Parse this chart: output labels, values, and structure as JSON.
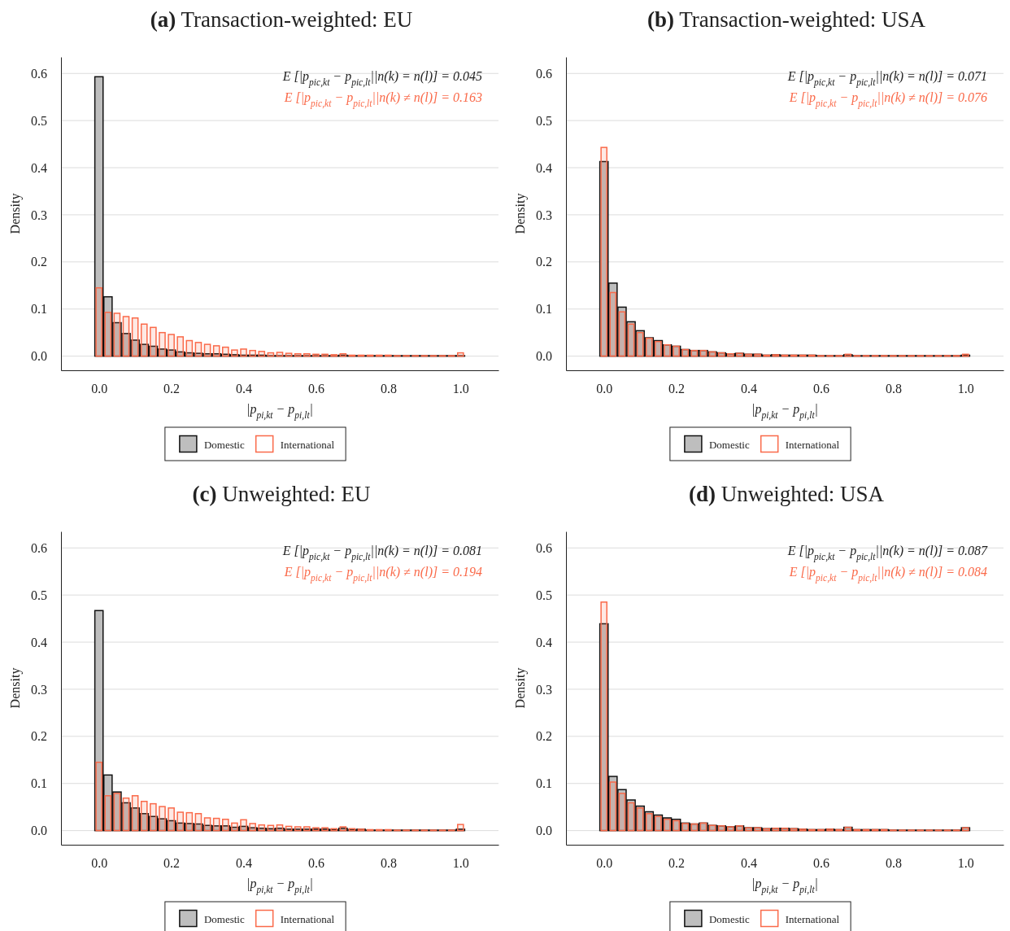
{
  "chart_data": [
    {
      "type": "histogram",
      "title": "(a) Transaction-weighted: EU",
      "xlabel": "|p$_{pi,kt}$ − p$_{pi,lt}$|",
      "ylabel": "Density",
      "annotations": [
        "E [|p$_{pic,kt}$ − p$_{pic,lt}$||n(k) = n(l)] = 0.045",
        "E [|p$_{pic,kt}$ − p$_{pic,lt}$||n(k) ≠ n(l)] = 0.163"
      ],
      "bins": [
        -0.0125,
        0.0125,
        0.0375,
        0.0625,
        0.0875,
        0.1125,
        0.1375,
        0.1625,
        0.1875,
        0.2125,
        0.2375,
        0.2625,
        0.2875,
        0.3125,
        0.3375,
        0.3625,
        0.3875,
        0.4125,
        0.4375,
        0.4625,
        0.4875,
        0.5125,
        0.5375,
        0.5625,
        0.5875,
        0.6125,
        0.6375,
        0.6625,
        0.6875,
        0.7125,
        0.7375,
        0.7625,
        0.7875,
        0.8125,
        0.8375,
        0.8625,
        0.8875,
        0.9125,
        0.9375,
        0.9625,
        0.9875,
        1.0125
      ],
      "series": [
        {
          "name": "Domestic",
          "color": "#bebebe",
          "values": [
            0.593,
            0.126,
            0.071,
            0.048,
            0.034,
            0.025,
            0.021,
            0.015,
            0.013,
            0.009,
            0.007,
            0.006,
            0.005,
            0.005,
            0.004,
            0.003,
            0.002,
            0.002,
            0.002,
            0.001,
            0.001,
            0.001,
            0.001,
            0.001,
            0.001,
            0.001,
            0.001,
            0.002,
            0.001,
            0.001,
            0.001,
            0.001,
            0.001,
            0.001,
            0.001,
            0.001,
            0.001,
            0.001,
            0.001,
            0.001,
            0.001
          ]
        },
        {
          "name": "International",
          "color": "#fa6a4a",
          "values": [
            0.145,
            0.093,
            0.091,
            0.084,
            0.081,
            0.068,
            0.061,
            0.05,
            0.046,
            0.041,
            0.033,
            0.029,
            0.025,
            0.022,
            0.019,
            0.013,
            0.015,
            0.012,
            0.01,
            0.007,
            0.008,
            0.006,
            0.005,
            0.005,
            0.004,
            0.004,
            0.003,
            0.005,
            0.002,
            0.002,
            0.002,
            0.002,
            0.002,
            0.001,
            0.001,
            0.001,
            0.001,
            0.001,
            0.001,
            0.001,
            0.007
          ]
        }
      ],
      "xlim": [
        -0.105,
        1.105
      ],
      "ylim": [
        -0.03,
        0.635
      ],
      "xticks": [
        {
          "value": 0,
          "label": "0.0"
        },
        {
          "value": 0.2,
          "label": "0.2"
        },
        {
          "value": 0.4,
          "label": "0.4"
        },
        {
          "value": 0.6,
          "label": "0.6"
        },
        {
          "value": 0.8,
          "label": "0.8"
        },
        {
          "value": 1,
          "label": "1.0"
        }
      ],
      "yticks": [
        {
          "value": 0,
          "label": "0.0"
        },
        {
          "value": 0.1,
          "label": "0.1"
        },
        {
          "value": 0.2,
          "label": "0.2"
        },
        {
          "value": 0.3,
          "label": "0.3"
        },
        {
          "value": 0.4,
          "label": "0.4"
        },
        {
          "value": 0.5,
          "label": "0.5"
        },
        {
          "value": 0.6,
          "label": "0.6"
        }
      ],
      "grid": "y",
      "legend": "bottom"
    },
    {
      "type": "histogram",
      "title": "(b) Transaction-weighted: USA",
      "xlabel": "|p$_{pi,kt}$ − p$_{pi,lt}$|",
      "ylabel": "Density",
      "annotations": [
        "E [|p$_{pic,kt}$ − p$_{pic,lt}$||n(k) = n(l)] = 0.071",
        "E [|p$_{pic,kt}$ − p$_{pic,lt}$||n(k) ≠ n(l)] = 0.076"
      ],
      "bins": [
        -0.0125,
        0.0125,
        0.0375,
        0.0625,
        0.0875,
        0.1125,
        0.1375,
        0.1625,
        0.1875,
        0.2125,
        0.2375,
        0.2625,
        0.2875,
        0.3125,
        0.3375,
        0.3625,
        0.3875,
        0.4125,
        0.4375,
        0.4625,
        0.4875,
        0.5125,
        0.5375,
        0.5625,
        0.5875,
        0.6125,
        0.6375,
        0.6625,
        0.6875,
        0.7125,
        0.7375,
        0.7625,
        0.7875,
        0.8125,
        0.8375,
        0.8625,
        0.8875,
        0.9125,
        0.9375,
        0.9625,
        0.9875,
        1.0125
      ],
      "series": [
        {
          "name": "Domestic",
          "color": "#bebebe",
          "values": [
            0.413,
            0.155,
            0.104,
            0.073,
            0.054,
            0.039,
            0.033,
            0.024,
            0.021,
            0.014,
            0.012,
            0.012,
            0.009,
            0.007,
            0.005,
            0.006,
            0.004,
            0.004,
            0.002,
            0.003,
            0.002,
            0.002,
            0.002,
            0.002,
            0.001,
            0.001,
            0.001,
            0.003,
            0.001,
            0.001,
            0.001,
            0.001,
            0.001,
            0.001,
            0.001,
            0.001,
            0.001,
            0.001,
            0.001,
            0.001,
            0.002
          ]
        },
        {
          "name": "International",
          "color": "#fa6a4a",
          "values": [
            0.443,
            0.135,
            0.094,
            0.068,
            0.05,
            0.038,
            0.031,
            0.024,
            0.021,
            0.014,
            0.012,
            0.012,
            0.009,
            0.007,
            0.005,
            0.006,
            0.004,
            0.004,
            0.002,
            0.003,
            0.002,
            0.002,
            0.002,
            0.002,
            0.001,
            0.001,
            0.001,
            0.004,
            0.001,
            0.001,
            0.001,
            0.001,
            0.001,
            0.001,
            0.001,
            0.001,
            0.001,
            0.001,
            0.001,
            0.001,
            0.004
          ]
        }
      ],
      "xlim": [
        -0.105,
        1.105
      ],
      "ylim": [
        -0.03,
        0.635
      ],
      "xticks": [
        {
          "value": 0,
          "label": "0.0"
        },
        {
          "value": 0.2,
          "label": "0.2"
        },
        {
          "value": 0.4,
          "label": "0.4"
        },
        {
          "value": 0.6,
          "label": "0.6"
        },
        {
          "value": 0.8,
          "label": "0.8"
        },
        {
          "value": 1,
          "label": "1.0"
        }
      ],
      "yticks": [
        {
          "value": 0,
          "label": "0.0"
        },
        {
          "value": 0.1,
          "label": "0.1"
        },
        {
          "value": 0.2,
          "label": "0.2"
        },
        {
          "value": 0.3,
          "label": "0.3"
        },
        {
          "value": 0.4,
          "label": "0.4"
        },
        {
          "value": 0.5,
          "label": "0.5"
        },
        {
          "value": 0.6,
          "label": "0.6"
        }
      ],
      "grid": "y",
      "legend": "bottom"
    },
    {
      "type": "histogram",
      "title": "(c) Unweighted: EU",
      "xlabel": "|p$_{pi,kt}$ − p$_{pi,lt}$|",
      "ylabel": "Density",
      "annotations": [
        "E [|p$_{pic,kt}$ − p$_{pic,lt}$||n(k) = n(l)] = 0.081",
        "E [|p$_{pic,kt}$ − p$_{pic,lt}$||n(k) ≠ n(l)] = 0.194"
      ],
      "bins": [
        -0.0125,
        0.0125,
        0.0375,
        0.0625,
        0.0875,
        0.1125,
        0.1375,
        0.1625,
        0.1875,
        0.2125,
        0.2375,
        0.2625,
        0.2875,
        0.3125,
        0.3375,
        0.3625,
        0.3875,
        0.4125,
        0.4375,
        0.4625,
        0.4875,
        0.5125,
        0.5375,
        0.5625,
        0.5875,
        0.6125,
        0.6375,
        0.6625,
        0.6875,
        0.7125,
        0.7375,
        0.7625,
        0.7875,
        0.8125,
        0.8375,
        0.8625,
        0.8875,
        0.9125,
        0.9375,
        0.9625,
        0.9875,
        1.0125
      ],
      "series": [
        {
          "name": "Domestic",
          "color": "#bebebe",
          "values": [
            0.467,
            0.118,
            0.082,
            0.059,
            0.048,
            0.036,
            0.03,
            0.025,
            0.021,
            0.016,
            0.015,
            0.014,
            0.011,
            0.01,
            0.01,
            0.007,
            0.009,
            0.006,
            0.005,
            0.004,
            0.005,
            0.003,
            0.003,
            0.003,
            0.003,
            0.003,
            0.002,
            0.005,
            0.002,
            0.003,
            0.001,
            0.001,
            0.001,
            0.001,
            0.001,
            0.001,
            0.001,
            0.001,
            0.001,
            0.001,
            0.003
          ]
        },
        {
          "name": "International",
          "color": "#fa6a4a",
          "values": [
            0.145,
            0.074,
            0.079,
            0.069,
            0.074,
            0.062,
            0.057,
            0.051,
            0.048,
            0.039,
            0.038,
            0.036,
            0.027,
            0.026,
            0.024,
            0.016,
            0.023,
            0.015,
            0.012,
            0.011,
            0.012,
            0.009,
            0.008,
            0.008,
            0.006,
            0.006,
            0.004,
            0.008,
            0.004,
            0.003,
            0.002,
            0.002,
            0.002,
            0.001,
            0.001,
            0.001,
            0.001,
            0.001,
            0.001,
            0.001,
            0.013
          ]
        }
      ],
      "xlim": [
        -0.105,
        1.105
      ],
      "ylim": [
        -0.03,
        0.635
      ],
      "xticks": [
        {
          "value": 0,
          "label": "0.0"
        },
        {
          "value": 0.2,
          "label": "0.2"
        },
        {
          "value": 0.4,
          "label": "0.4"
        },
        {
          "value": 0.6,
          "label": "0.6"
        },
        {
          "value": 0.8,
          "label": "0.8"
        },
        {
          "value": 1,
          "label": "1.0"
        }
      ],
      "yticks": [
        {
          "value": 0,
          "label": "0.0"
        },
        {
          "value": 0.1,
          "label": "0.1"
        },
        {
          "value": 0.2,
          "label": "0.2"
        },
        {
          "value": 0.3,
          "label": "0.3"
        },
        {
          "value": 0.4,
          "label": "0.4"
        },
        {
          "value": 0.5,
          "label": "0.5"
        },
        {
          "value": 0.6,
          "label": "0.6"
        }
      ],
      "grid": "y",
      "legend": "bottom"
    },
    {
      "type": "histogram",
      "title": "(d) Unweighted: USA",
      "xlabel": "|p$_{pi,kt}$ − p$_{pi,lt}$|",
      "ylabel": "Density",
      "annotations": [
        "E [|p$_{pic,kt}$ − p$_{pic,lt}$||n(k) = n(l)] = 0.087",
        "E [|p$_{pic,kt}$ − p$_{pic,lt}$||n(k) ≠ n(l)] = 0.084"
      ],
      "bins": [
        -0.0125,
        0.0125,
        0.0375,
        0.0625,
        0.0875,
        0.1125,
        0.1375,
        0.1625,
        0.1875,
        0.2125,
        0.2375,
        0.2625,
        0.2875,
        0.3125,
        0.3375,
        0.3625,
        0.3875,
        0.4125,
        0.4375,
        0.4625,
        0.4875,
        0.5125,
        0.5375,
        0.5625,
        0.5875,
        0.6125,
        0.6375,
        0.6625,
        0.6875,
        0.7125,
        0.7375,
        0.7625,
        0.7875,
        0.8125,
        0.8375,
        0.8625,
        0.8875,
        0.9125,
        0.9375,
        0.9625,
        0.9875,
        1.0125
      ],
      "series": [
        {
          "name": "Domestic",
          "color": "#bebebe",
          "values": [
            0.439,
            0.115,
            0.087,
            0.065,
            0.052,
            0.04,
            0.033,
            0.027,
            0.024,
            0.016,
            0.014,
            0.016,
            0.011,
            0.01,
            0.008,
            0.01,
            0.006,
            0.006,
            0.004,
            0.005,
            0.005,
            0.004,
            0.003,
            0.002,
            0.002,
            0.003,
            0.002,
            0.007,
            0.002,
            0.002,
            0.002,
            0.002,
            0.001,
            0.001,
            0.001,
            0.001,
            0.001,
            0.001,
            0.001,
            0.001,
            0.006
          ]
        },
        {
          "name": "International",
          "color": "#fa6a4a",
          "values": [
            0.485,
            0.103,
            0.079,
            0.059,
            0.048,
            0.036,
            0.03,
            0.024,
            0.021,
            0.015,
            0.014,
            0.016,
            0.011,
            0.01,
            0.008,
            0.01,
            0.006,
            0.006,
            0.004,
            0.005,
            0.005,
            0.004,
            0.003,
            0.002,
            0.002,
            0.003,
            0.002,
            0.007,
            0.002,
            0.002,
            0.002,
            0.002,
            0.001,
            0.001,
            0.001,
            0.001,
            0.001,
            0.001,
            0.001,
            0.001,
            0.006
          ]
        }
      ],
      "xlim": [
        -0.105,
        1.105
      ],
      "ylim": [
        -0.03,
        0.635
      ],
      "xticks": [
        {
          "value": 0,
          "label": "0.0"
        },
        {
          "value": 0.2,
          "label": "0.2"
        },
        {
          "value": 0.4,
          "label": "0.4"
        },
        {
          "value": 0.6,
          "label": "0.6"
        },
        {
          "value": 0.8,
          "label": "0.8"
        },
        {
          "value": 1,
          "label": "1.0"
        }
      ],
      "yticks": [
        {
          "value": 0,
          "label": "0.0"
        },
        {
          "value": 0.1,
          "label": "0.1"
        },
        {
          "value": 0.2,
          "label": "0.2"
        },
        {
          "value": 0.3,
          "label": "0.3"
        },
        {
          "value": 0.4,
          "label": "0.4"
        },
        {
          "value": 0.5,
          "label": "0.5"
        },
        {
          "value": 0.6,
          "label": "0.6"
        }
      ],
      "grid": "y",
      "legend": "bottom"
    }
  ]
}
